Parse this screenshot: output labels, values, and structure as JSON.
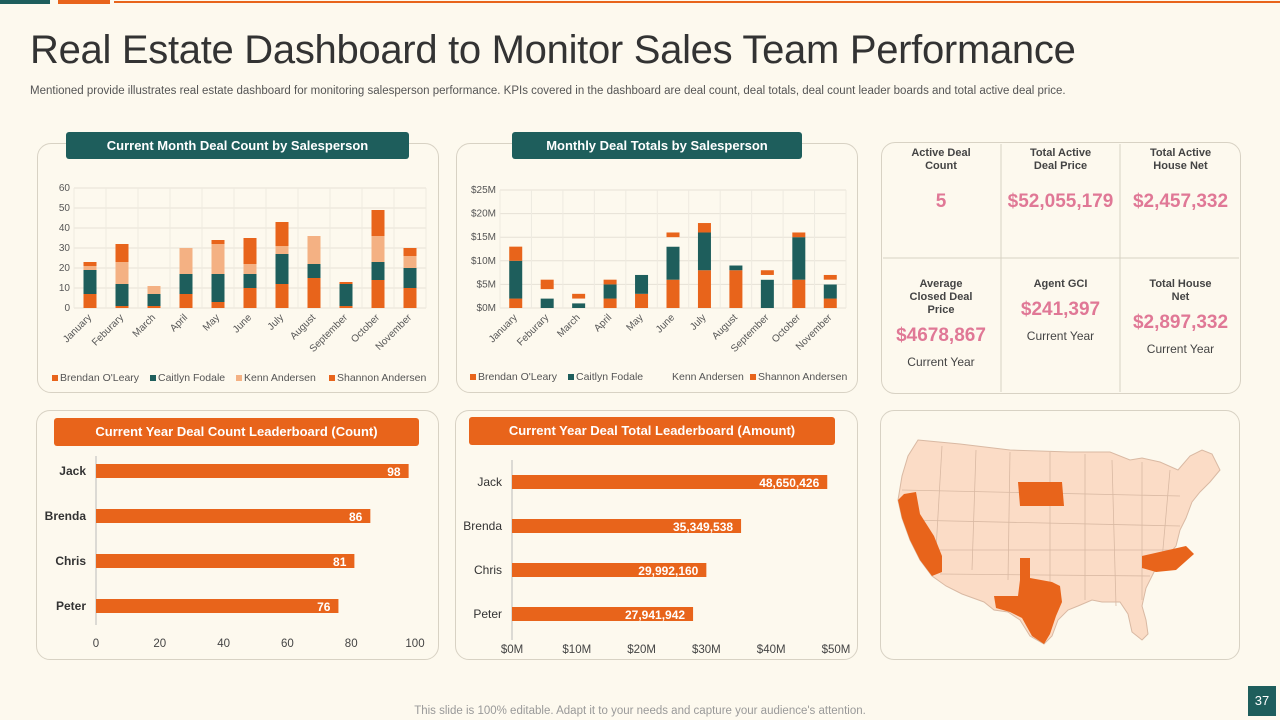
{
  "header": {
    "title": "Real Estate Dashboard to Monitor Sales Team Performance",
    "subtitle": "Mentioned provide illustrates real estate dashboard for monitoring salesperson performance. KPIs covered in the dashboard are  deal count, deal totals, deal count leader boards and total active deal price."
  },
  "colors": {
    "orange": "#e8641b",
    "teal": "#1e5e5c",
    "light_orange": "#f4b183",
    "kpi_pink": "#e07896",
    "map_base": "#fbdcc6"
  },
  "panels": {
    "deal_count_title": "Current Month Deal Count by Salesperson",
    "deal_totals_title": "Monthly Deal Totals by Salesperson",
    "count_leader_title": "Current Year Deal Count Leaderboard (Count)",
    "total_leader_title": "Current Year Deal Total Leaderboard (Amount)"
  },
  "kpis": [
    {
      "label": "Active Deal Count",
      "value": "5",
      "sub": ""
    },
    {
      "label": "Total Active Deal Price",
      "value": "$52,055,179",
      "sub": ""
    },
    {
      "label": "Total Active House Net",
      "value": "$2,457,332",
      "sub": ""
    },
    {
      "label": "Average Closed Deal Price",
      "value": "$4678,867",
      "sub": "Current Year"
    },
    {
      "label": "Agent GCI",
      "value": "$241,397",
      "sub": "Current Year"
    },
    {
      "label": "Total House Net",
      "value": "$2,897,332",
      "sub": "Current Year"
    }
  ],
  "chart_data": [
    {
      "type": "bar",
      "stacked": true,
      "title": "Current Month Deal Count by Salesperson",
      "categories": [
        "January",
        "Feburary",
        "March",
        "April",
        "May",
        "June",
        "July",
        "August",
        "September",
        "October",
        "November"
      ],
      "series": [
        {
          "name": "Brendan O'Leary",
          "color": "#e8641b",
          "values": [
            7,
            1,
            1,
            7,
            3,
            10,
            12,
            15,
            1,
            14,
            10
          ]
        },
        {
          "name": "Caitlyn Fodale",
          "color": "#1e5e5c",
          "values": [
            12,
            11,
            6,
            10,
            14,
            7,
            15,
            7,
            11,
            9,
            10
          ]
        },
        {
          "name": "Kenn Andersen",
          "color": "#f4b183",
          "values": [
            2,
            11,
            4,
            13,
            15,
            5,
            4,
            14,
            0,
            13,
            6
          ]
        },
        {
          "name": "Shannon Andersen",
          "color": "#e8641b",
          "values": [
            2,
            9,
            0,
            0,
            2,
            13,
            12,
            0,
            1,
            13,
            4
          ]
        }
      ],
      "yticks": [
        "0",
        "10",
        "20",
        "30",
        "40",
        "50",
        "60"
      ],
      "ylim": [
        0,
        60
      ],
      "grid": true,
      "legend": "bottom"
    },
    {
      "type": "bar",
      "stacked": true,
      "title": "Monthly Deal Totals by Salesperson",
      "categories": [
        "January",
        "Feburary",
        "March",
        "April",
        "May",
        "June",
        "July",
        "August",
        "September",
        "October",
        "November"
      ],
      "series": [
        {
          "name": "Brendan O'Leary",
          "color": "#e8641b",
          "values": [
            2,
            0,
            0,
            2,
            3,
            6,
            8,
            8,
            0,
            6,
            2
          ]
        },
        {
          "name": "Caitlyn Fodale",
          "color": "#1e5e5c",
          "values": [
            8,
            2,
            1,
            3,
            4,
            7,
            8,
            1,
            6,
            9,
            3
          ]
        },
        {
          "name": "Kenn Andersen",
          "color": "#fdf9ee",
          "values": [
            0,
            2,
            1,
            0,
            0,
            2,
            0,
            0,
            1,
            0,
            1
          ]
        },
        {
          "name": "Shannon Andersen",
          "color": "#e8641b",
          "values": [
            3,
            2,
            1,
            1,
            0,
            1,
            2,
            0,
            1,
            1,
            1
          ]
        }
      ],
      "yticks": [
        "$0M",
        "$5M",
        "$10M",
        "$15M",
        "$20M",
        "$25M"
      ],
      "ylim": [
        0,
        25
      ],
      "grid": true,
      "legend": "bottom"
    },
    {
      "type": "bar",
      "orientation": "horizontal",
      "title": "Current Year Deal Count Leaderboard (Count)",
      "categories": [
        "Jack",
        "Brenda",
        "Chris",
        "Peter"
      ],
      "values": [
        98,
        86,
        81,
        76
      ],
      "labels": [
        "98",
        "86",
        "81",
        "76"
      ],
      "xticks": [
        "0",
        "20",
        "40",
        "60",
        "80",
        "100"
      ],
      "xlim": [
        0,
        100
      ]
    },
    {
      "type": "bar",
      "orientation": "horizontal",
      "title": "Current Year Deal Total Leaderboard (Amount)",
      "categories": [
        "Jack",
        "Brenda",
        "Chris",
        "Peter"
      ],
      "values": [
        48650426,
        35349538,
        29992160,
        27941942
      ],
      "labels": [
        "48,650,426",
        "35,349,538",
        "29,992,160",
        "27,941,942"
      ],
      "xticks": [
        "$0M",
        "$10M",
        "$20M",
        "$30M",
        "$40M",
        "$50M"
      ],
      "xlim": [
        0,
        50000000
      ]
    }
  ],
  "map": {
    "highlighted_states": [
      "California",
      "Texas",
      "South Dakota",
      "North Carolina"
    ]
  },
  "footer": {
    "note": "This slide is 100% editable. Adapt it to your needs and capture your audience's attention.",
    "page": "37"
  }
}
